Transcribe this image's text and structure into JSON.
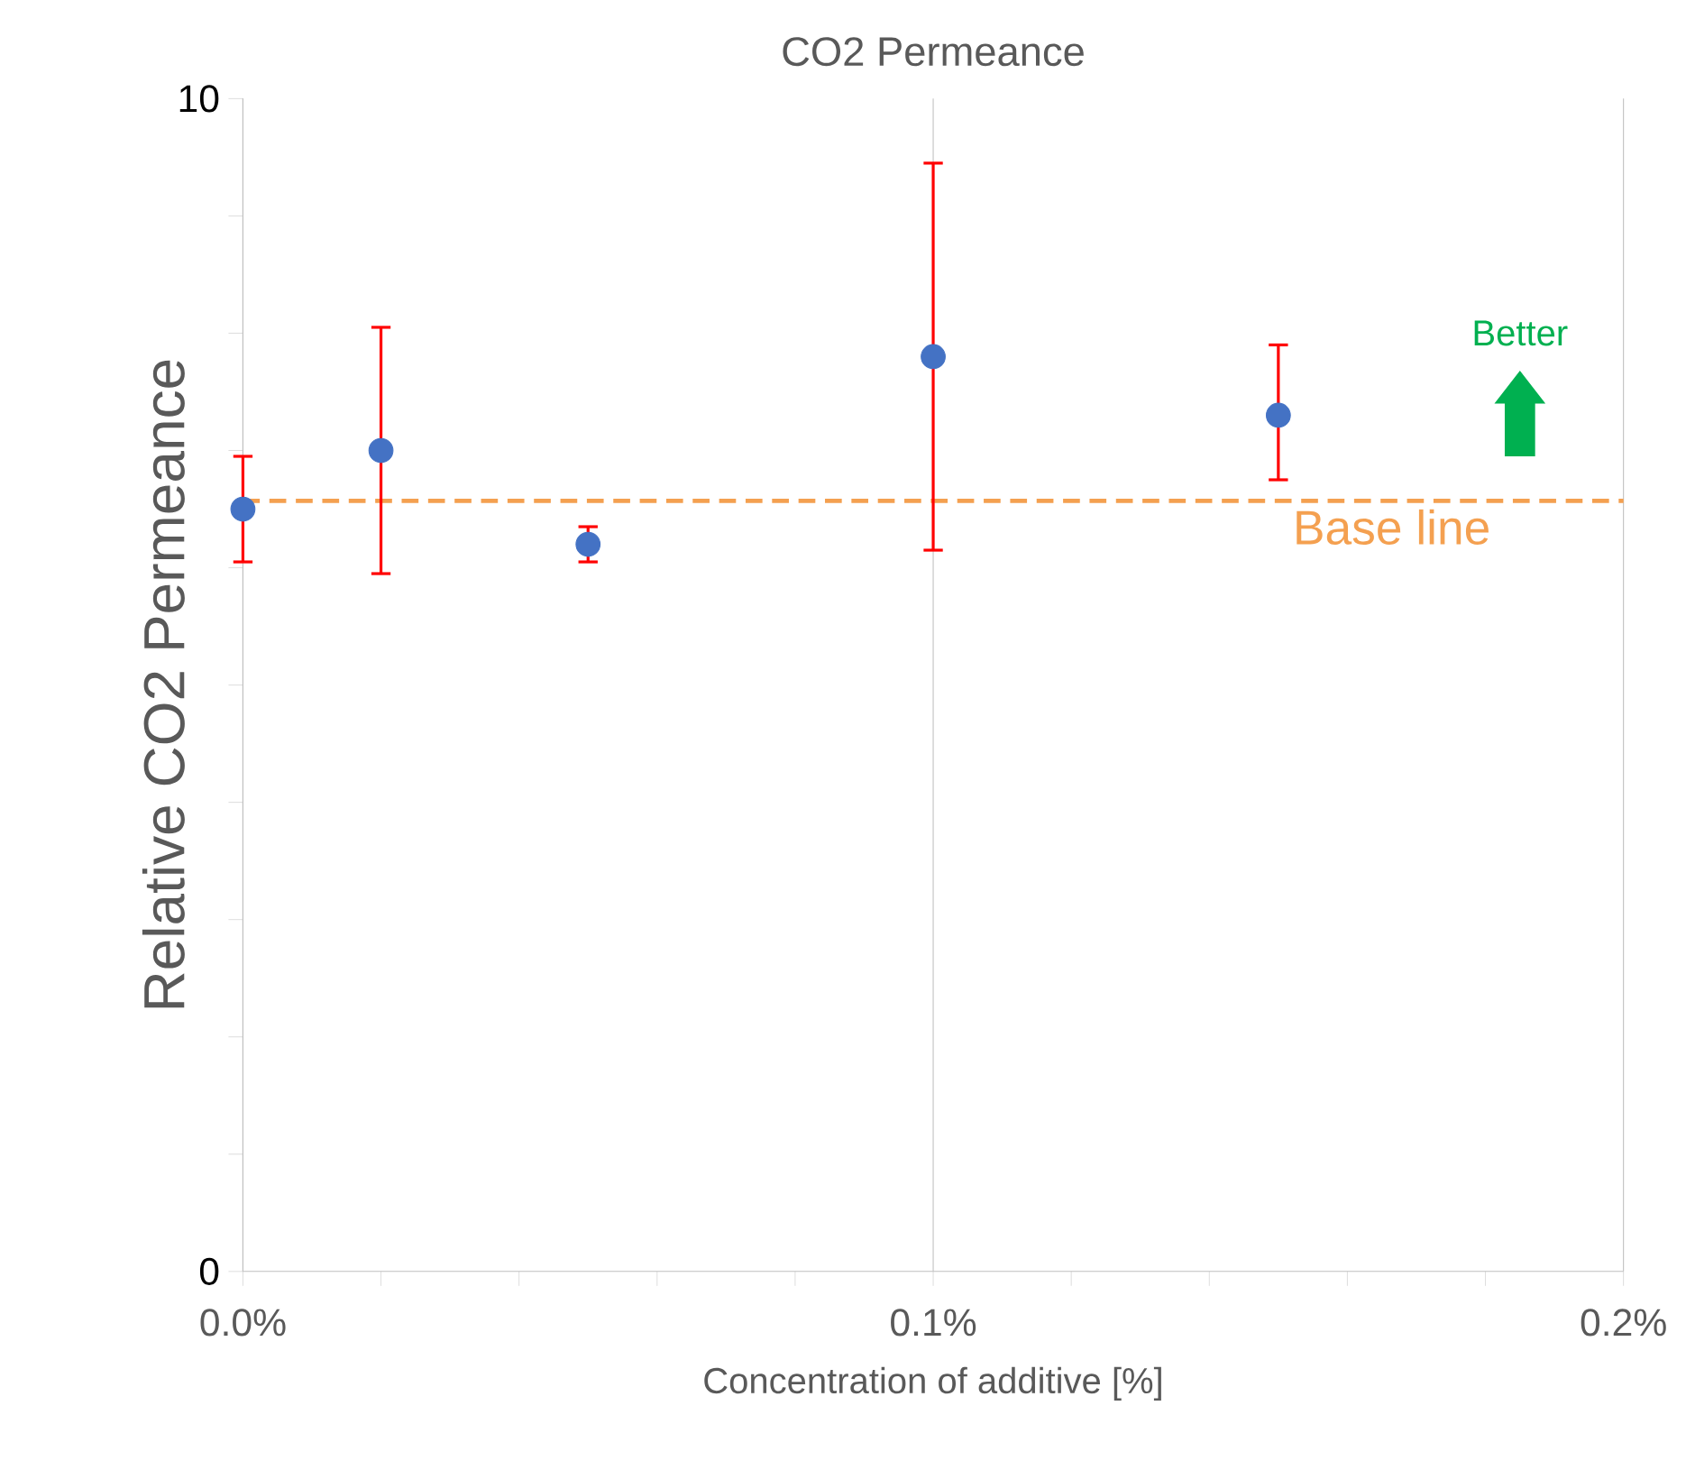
{
  "chart_data": {
    "type": "scatter",
    "title": "CO2 Permeance",
    "xlabel": "Concentration of additive [%]",
    "ylabel": "Relative CO2 Permeance",
    "x": [
      0,
      0.02,
      0.05,
      0.1,
      0.15
    ],
    "values": [
      6.5,
      7.0,
      6.2,
      7.8,
      7.3
    ],
    "errors": [
      [
        6.05,
        6.95
      ],
      [
        5.95,
        8.05
      ],
      [
        6.05,
        6.35
      ],
      [
        6.15,
        9.45
      ],
      [
        6.75,
        7.9
      ]
    ],
    "color": "#4472c4",
    "grid": "x",
    "xlim": [
      0,
      0.2
    ],
    "xticks": [
      {
        "value": 0,
        "label": "0.0%"
      },
      {
        "value": 0.02,
        "label": null
      },
      {
        "value": 0.04,
        "label": null
      },
      {
        "value": 0.06,
        "label": null
      },
      {
        "value": 0.08,
        "label": null
      },
      {
        "value": 0.1,
        "label": "0.1%"
      },
      {
        "value": 0.12,
        "label": null
      },
      {
        "value": 0.14,
        "label": null
      },
      {
        "value": 0.16,
        "label": null
      },
      {
        "value": 0.18,
        "label": null
      },
      {
        "value": 0.2,
        "label": "0.2%"
      }
    ],
    "ylim": [
      0,
      10
    ],
    "yticks": [
      0,
      {
        "value": 1,
        "label": null
      },
      {
        "value": 2,
        "label": null
      },
      {
        "value": 3,
        "label": null
      },
      {
        "value": 4,
        "label": null
      },
      {
        "value": 5,
        "label": null
      },
      {
        "value": 6,
        "label": null
      },
      {
        "value": 7,
        "label": null
      },
      {
        "value": 8,
        "label": null
      },
      {
        "value": 9,
        "label": null
      },
      10
    ],
    "ref_lines": [
      {
        "axis": "y",
        "value": 6.57,
        "label": "Base line",
        "color": "#f4a050",
        "line_style": "dashed"
      }
    ],
    "annotations": [
      "Better"
    ]
  }
}
